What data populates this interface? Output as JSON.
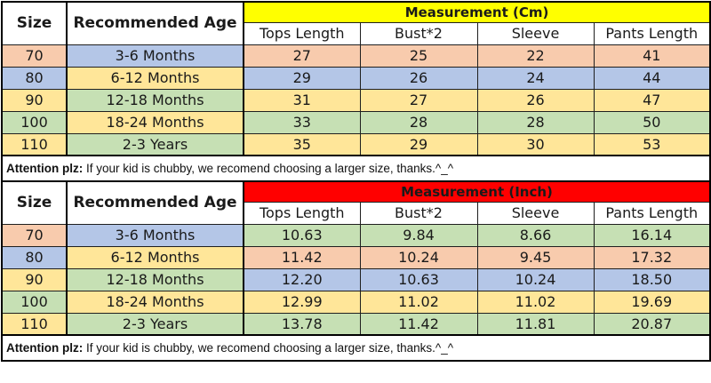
{
  "palette": {
    "peach": "#F8CBAD",
    "blue": "#B4C6E7",
    "yellow": "#FFE699",
    "green": "#C6E0B4",
    "band_yellow": "#FFFF00",
    "band_red": "#FF0000",
    "white": "#FFFFFF",
    "border": "#000000"
  },
  "tables": [
    {
      "header": {
        "size_label": "Size",
        "age_label": "Recommended Age",
        "measurement_label": "Measurement (Cm)",
        "band_color": "#FFFF00",
        "measure_columns": [
          "Tops Length",
          "Bust*2",
          "Sleeve",
          "Pants Length"
        ]
      },
      "rows": [
        {
          "size": "70",
          "age": "3-6 Months",
          "values": [
            "27",
            "25",
            "22",
            "41"
          ],
          "size_color": "peach",
          "age_color": "blue",
          "values_color": "peach"
        },
        {
          "size": "80",
          "age": "6-12 Months",
          "values": [
            "29",
            "26",
            "24",
            "44"
          ],
          "size_color": "blue",
          "age_color": "yellow",
          "values_color": "blue"
        },
        {
          "size": "90",
          "age": "12-18 Months",
          "values": [
            "31",
            "27",
            "26",
            "47"
          ],
          "size_color": "yellow",
          "age_color": "green",
          "values_color": "yellow"
        },
        {
          "size": "100",
          "age": "18-24 Months",
          "values": [
            "33",
            "28",
            "28",
            "50"
          ],
          "size_color": "green",
          "age_color": "yellow",
          "values_color": "green"
        },
        {
          "size": "110",
          "age": "2-3 Years",
          "values": [
            "35",
            "29",
            "30",
            "53"
          ],
          "size_color": "yellow",
          "age_color": "green",
          "values_color": "yellow"
        }
      ],
      "note_bold": "Attention plz:",
      "note_text": " If your kid is chubby, we recomend choosing a larger size, thanks.^_^"
    },
    {
      "header": {
        "size_label": "Size",
        "age_label": "Recommended Age",
        "measurement_label": "Measurement (Inch)",
        "band_color": "#FF0000",
        "measure_columns": [
          "Tops Length",
          "Bust*2",
          "Sleeve",
          "Pants Length"
        ]
      },
      "rows": [
        {
          "size": "70",
          "age": "3-6 Months",
          "values": [
            "10.63",
            "9.84",
            "8.66",
            "16.14"
          ],
          "size_color": "peach",
          "age_color": "blue",
          "values_color": "green"
        },
        {
          "size": "80",
          "age": "6-12 Months",
          "values": [
            "11.42",
            "10.24",
            "9.45",
            "17.32"
          ],
          "size_color": "blue",
          "age_color": "yellow",
          "values_color": "peach"
        },
        {
          "size": "90",
          "age": "12-18 Months",
          "values": [
            "12.20",
            "10.63",
            "10.24",
            "18.50"
          ],
          "size_color": "yellow",
          "age_color": "green",
          "values_color": "blue"
        },
        {
          "size": "100",
          "age": "18-24 Months",
          "values": [
            "12.99",
            "11.02",
            "11.02",
            "19.69"
          ],
          "size_color": "green",
          "age_color": "yellow",
          "values_color": "yellow"
        },
        {
          "size": "110",
          "age": "2-3 Years",
          "values": [
            "13.78",
            "11.42",
            "11.81",
            "20.87"
          ],
          "size_color": "yellow",
          "age_color": "green",
          "values_color": "green"
        }
      ],
      "note_bold": "Attention plz:",
      "note_text": " If your kid is chubby, we recomend choosing a larger size, thanks.^_^"
    }
  ],
  "chart_data": [
    {
      "type": "table",
      "title": "Measurement (Cm)",
      "columns": [
        "Size",
        "Recommended Age",
        "Tops Length",
        "Bust*2",
        "Sleeve",
        "Pants Length"
      ],
      "rows": [
        [
          "70",
          "3-6 Months",
          27,
          25,
          22,
          41
        ],
        [
          "80",
          "6-12 Months",
          29,
          26,
          24,
          44
        ],
        [
          "90",
          "12-18 Months",
          31,
          27,
          26,
          47
        ],
        [
          "100",
          "18-24 Months",
          33,
          28,
          28,
          50
        ],
        [
          "110",
          "2-3 Years",
          35,
          29,
          30,
          53
        ]
      ],
      "note": "Attention plz: If your kid is chubby, we recomend choosing a larger size, thanks.^_^"
    },
    {
      "type": "table",
      "title": "Measurement (Inch)",
      "columns": [
        "Size",
        "Recommended Age",
        "Tops Length",
        "Bust*2",
        "Sleeve",
        "Pants Length"
      ],
      "rows": [
        [
          "70",
          "3-6 Months",
          10.63,
          9.84,
          8.66,
          16.14
        ],
        [
          "80",
          "6-12 Months",
          11.42,
          10.24,
          9.45,
          17.32
        ],
        [
          "90",
          "12-18 Months",
          12.2,
          10.63,
          10.24,
          18.5
        ],
        [
          "100",
          "18-24 Months",
          12.99,
          11.02,
          11.02,
          19.69
        ],
        [
          "110",
          "2-3 Years",
          13.78,
          11.42,
          11.81,
          20.87
        ]
      ],
      "note": "Attention plz: If your kid is chubby, we recomend choosing a larger size, thanks.^_^"
    }
  ]
}
